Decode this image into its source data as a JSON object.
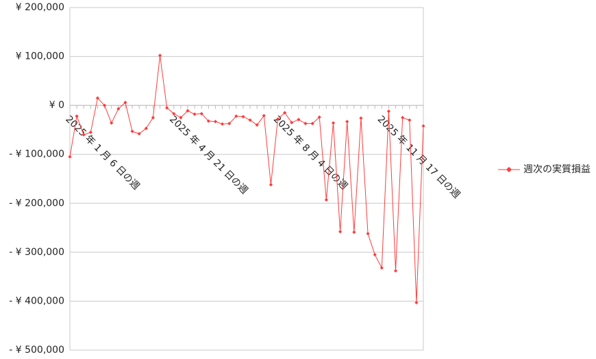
{
  "chart_data": {
    "type": "line",
    "categories": [
      "2025 年 1 月 6 日の週",
      null,
      null,
      null,
      null,
      null,
      null,
      null,
      null,
      null,
      null,
      null,
      null,
      null,
      null,
      "2025 年 4 月 21 日の週",
      null,
      null,
      null,
      null,
      null,
      null,
      null,
      null,
      null,
      null,
      null,
      null,
      null,
      null,
      "2025 年 8 月 4 日の週",
      null,
      null,
      null,
      null,
      null,
      null,
      null,
      null,
      null,
      null,
      null,
      null,
      null,
      null,
      "2025 年 11 月 17 日の週",
      null,
      null,
      null,
      null,
      null,
      null
    ],
    "series": [
      {
        "name": "週次の実質損益",
        "color": "#ff3b3b",
        "values": [
          -105000,
          -22000,
          -60000,
          -55000,
          15000,
          0,
          -36000,
          -7000,
          6000,
          -53000,
          -58000,
          -47000,
          -25000,
          102000,
          -5000,
          -17000,
          -25000,
          -11000,
          -18000,
          -17000,
          -32000,
          -33000,
          -38000,
          -37000,
          -22000,
          -23000,
          -30000,
          -40000,
          -21000,
          -162000,
          -28000,
          -15000,
          -35000,
          -29000,
          -37000,
          -37000,
          -24000,
          -193000,
          -36000,
          -258000,
          -33000,
          -259000,
          -26000,
          -262000,
          -305000,
          -332000,
          -12000,
          -338000,
          -25000,
          -30000,
          -403000,
          -42000
        ]
      }
    ],
    "ylim": [
      -500000,
      200000
    ],
    "yticks": [
      {
        "value": 200000,
        "label": "¥ 200,000"
      },
      {
        "value": 100000,
        "label": "¥ 100,000"
      },
      {
        "value": 0,
        "label": "¥ 0"
      },
      {
        "value": -100000,
        "label": "- ¥ 100,000"
      },
      {
        "value": -200000,
        "label": "- ¥ 200,000"
      },
      {
        "value": -300000,
        "label": "- ¥ 300,000"
      },
      {
        "value": -400000,
        "label": "- ¥ 400,000"
      },
      {
        "value": -500000,
        "label": "- ¥ 500,000"
      }
    ],
    "negative_label_color": "#e00000",
    "grid": true,
    "legend": "right"
  }
}
